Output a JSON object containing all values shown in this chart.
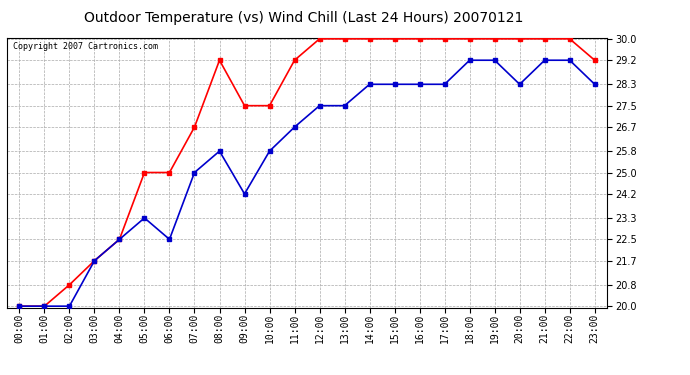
{
  "title": "Outdoor Temperature (vs) Wind Chill (Last 24 Hours) 20070121",
  "copyright": "Copyright 2007 Cartronics.com",
  "x_labels": [
    "00:00",
    "01:00",
    "02:00",
    "03:00",
    "04:00",
    "05:00",
    "06:00",
    "07:00",
    "08:00",
    "09:00",
    "10:00",
    "11:00",
    "12:00",
    "13:00",
    "14:00",
    "15:00",
    "16:00",
    "17:00",
    "18:00",
    "19:00",
    "20:00",
    "21:00",
    "22:00",
    "23:00"
  ],
  "temp_red": [
    20.0,
    20.0,
    20.8,
    21.7,
    22.5,
    25.0,
    25.0,
    26.7,
    29.2,
    27.5,
    27.5,
    29.2,
    30.0,
    30.0,
    30.0,
    30.0,
    30.0,
    30.0,
    30.0,
    30.0,
    30.0,
    30.0,
    30.0,
    29.2
  ],
  "wind_blue": [
    20.0,
    20.0,
    20.0,
    21.7,
    22.5,
    23.3,
    22.5,
    25.0,
    25.8,
    24.2,
    25.8,
    26.7,
    27.5,
    27.5,
    28.3,
    28.3,
    28.3,
    28.3,
    29.2,
    29.2,
    28.3,
    29.2,
    29.2,
    28.3
  ],
  "ylim": [
    20.0,
    30.0
  ],
  "yticks": [
    20.0,
    20.8,
    21.7,
    22.5,
    23.3,
    24.2,
    25.0,
    25.8,
    26.7,
    27.5,
    28.3,
    29.2,
    30.0
  ],
  "red_color": "#ff0000",
  "blue_color": "#0000cc",
  "grid_color": "#aaaaaa",
  "bg_color": "#ffffff",
  "title_fontsize": 10,
  "tick_fontsize": 7,
  "copyright_fontsize": 6
}
